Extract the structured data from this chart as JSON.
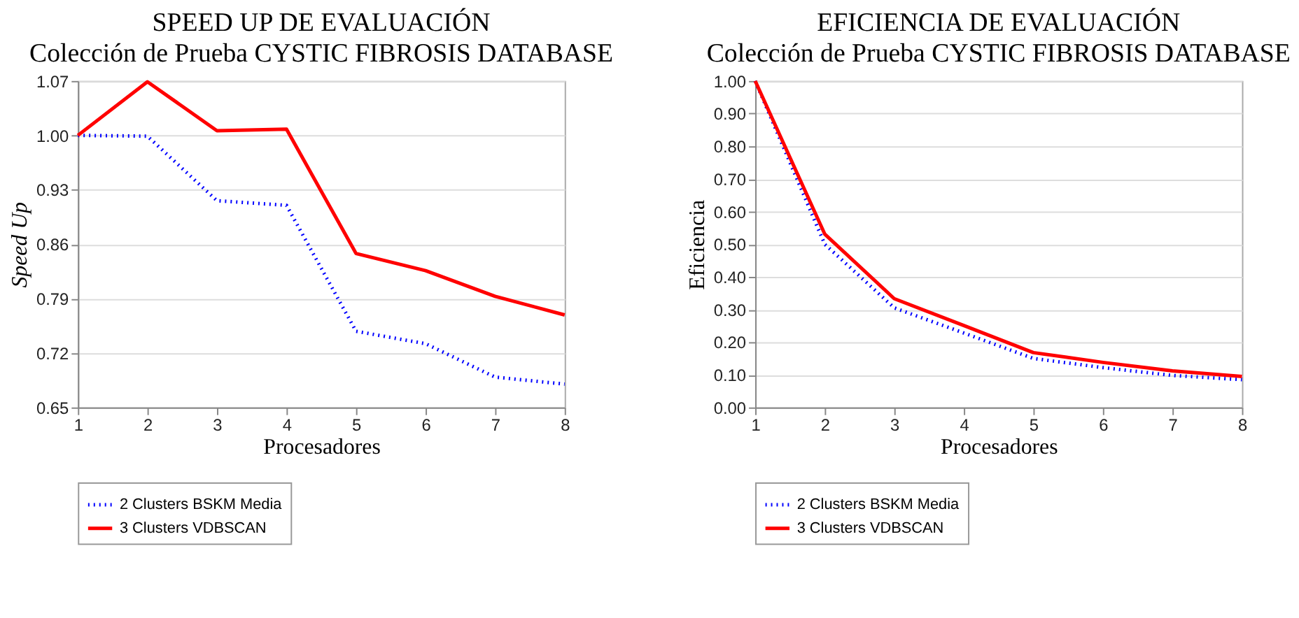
{
  "chart_data": [
    {
      "type": "line",
      "title": "SPEED UP DE EVALUACIÓN",
      "subtitle": "Colección de Prueba CYSTIC FIBROSIS DATABASE",
      "xlabel": "Procesadores",
      "ylabel": "Speed Up",
      "x": [
        1,
        2,
        3,
        4,
        5,
        6,
        7,
        8
      ],
      "series": [
        {
          "name": "2 Clusters BSKM Media",
          "color": "#0000ff",
          "line_style": "dotted",
          "values": [
            1.0,
            0.999,
            0.916,
            0.91,
            0.748,
            0.732,
            0.689,
            0.68
          ]
        },
        {
          "name": "3 Clusters VDBSCAN",
          "color": "#ff0000",
          "line_style": "solid",
          "values": [
            1.0,
            1.069,
            1.006,
            1.008,
            0.848,
            0.826,
            0.793,
            0.769
          ]
        }
      ],
      "xlim": [
        1,
        8
      ],
      "xticks": [
        1,
        2,
        3,
        4,
        5,
        6,
        7,
        8
      ],
      "ylim": [
        0.65,
        1.07
      ],
      "yticks": [
        {
          "value": 0.65,
          "label": "0.65"
        },
        {
          "value": 0.72,
          "label": "0.72"
        },
        {
          "value": 0.79,
          "label": "0.79"
        },
        {
          "value": 0.86,
          "label": "0.86"
        },
        {
          "value": 0.93,
          "label": "0.93"
        },
        {
          "value": 1.0,
          "label": "1.00"
        },
        {
          "value": 1.07,
          "label": "1.07"
        }
      ],
      "grid": "y",
      "legend": "bottom",
      "marker": "none"
    },
    {
      "type": "line",
      "title": "EFICIENCIA DE EVALUACIÓN",
      "subtitle": "Colección de Prueba CYSTIC FIBROSIS DATABASE",
      "xlabel": "Procesadores",
      "ylabel": "Eficiencia",
      "x": [
        1,
        2,
        3,
        4,
        5,
        6,
        7,
        8
      ],
      "series": [
        {
          "name": "2 Clusters BSKM Media",
          "color": "#0000ff",
          "line_style": "dotted",
          "values": [
            1.0,
            0.5,
            0.305,
            0.228,
            0.15,
            0.122,
            0.098,
            0.085
          ]
        },
        {
          "name": "3 Clusters VDBSCAN",
          "color": "#ff0000",
          "line_style": "solid",
          "values": [
            1.0,
            0.531,
            0.333,
            0.251,
            0.168,
            0.138,
            0.112,
            0.095
          ]
        }
      ],
      "xlim": [
        1,
        8
      ],
      "xticks": [
        1,
        2,
        3,
        4,
        5,
        6,
        7,
        8
      ],
      "ylim": [
        0.0,
        1.0
      ],
      "yticks": [
        {
          "value": 0.0,
          "label": "0.00"
        },
        {
          "value": 0.1,
          "label": "0.10"
        },
        {
          "value": 0.2,
          "label": "0.20"
        },
        {
          "value": 0.3,
          "label": "0.30"
        },
        {
          "value": 0.4,
          "label": "0.40"
        },
        {
          "value": 0.5,
          "label": "0.50"
        },
        {
          "value": 0.6,
          "label": "0.60"
        },
        {
          "value": 0.7,
          "label": "0.70"
        },
        {
          "value": 0.8,
          "label": "0.80"
        },
        {
          "value": 0.9,
          "label": "0.90"
        },
        {
          "value": 1.0,
          "label": "1.00"
        }
      ],
      "grid": "y",
      "legend": "bottom",
      "marker": "none"
    }
  ]
}
